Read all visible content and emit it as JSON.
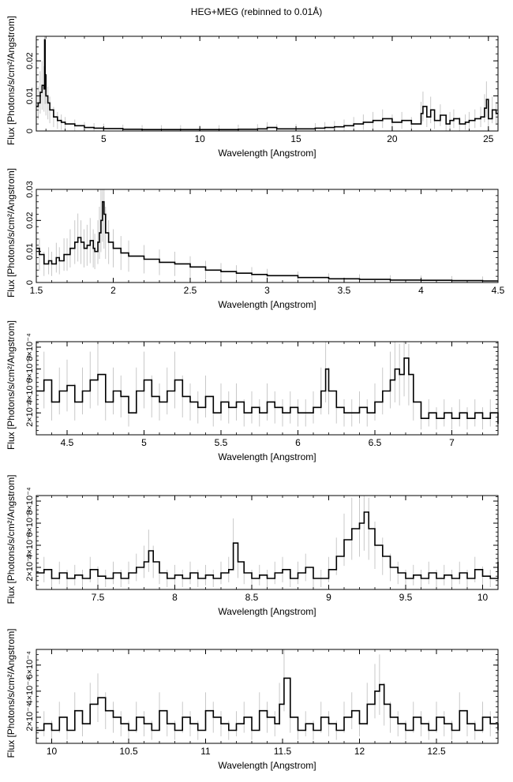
{
  "title": "HEG+MEG (rebinned to 0.01Å)",
  "chart_data": [
    {
      "type": "line",
      "subtype": "step-with-errorbars",
      "xlabel": "Wavelength [Angstrom]",
      "ylabel": "Flux [Photons/s/cm²/Angstrom]",
      "xlim": [
        1.5,
        25.5
      ],
      "ylim": [
        0,
        0.027
      ],
      "xticks": [
        5,
        10,
        15,
        20,
        25
      ],
      "yticks": [
        0,
        0.01,
        0.02
      ],
      "xticklabels": [
        "5",
        "10",
        "15",
        "20",
        "25"
      ],
      "yticklabels": [
        "0",
        "0.01",
        "0.02"
      ],
      "series": [
        {
          "x": [
            1.5,
            1.6,
            1.7,
            1.8,
            1.9,
            1.93,
            1.96,
            2.0,
            2.1,
            2.2,
            2.4,
            2.6,
            2.8,
            3.0,
            3.5,
            4.0,
            4.5,
            5.0,
            6.0,
            7.0,
            8.0,
            9.0,
            10.0,
            11.0,
            12.0,
            13.0,
            13.5,
            14.0,
            15.0,
            16.0,
            16.5,
            17.0,
            17.5,
            18.0,
            18.5,
            19.0,
            19.5,
            20.0,
            20.5,
            21.0,
            21.5,
            21.6,
            21.8,
            22.0,
            22.2,
            22.5,
            22.8,
            23.0,
            23.2,
            23.5,
            23.8,
            24.0,
            24.3,
            24.6,
            24.8,
            24.9,
            25.0,
            25.2,
            25.4
          ],
          "y": [
            0.007,
            0.008,
            0.011,
            0.013,
            0.012,
            0.026,
            0.016,
            0.01,
            0.008,
            0.006,
            0.004,
            0.003,
            0.0025,
            0.002,
            0.0015,
            0.001,
            0.0008,
            0.0007,
            0.0005,
            0.0004,
            0.0004,
            0.0004,
            0.0004,
            0.0004,
            0.0005,
            0.0006,
            0.001,
            0.0006,
            0.0006,
            0.0008,
            0.001,
            0.0012,
            0.0015,
            0.002,
            0.0025,
            0.003,
            0.0035,
            0.0025,
            0.003,
            0.002,
            0.005,
            0.007,
            0.004,
            0.006,
            0.003,
            0.0045,
            0.002,
            0.003,
            0.0035,
            0.002,
            0.0025,
            0.003,
            0.0035,
            0.004,
            0.0065,
            0.009,
            0.0035,
            0.006,
            0.005
          ]
        }
      ]
    },
    {
      "type": "line",
      "subtype": "step-with-errorbars",
      "xlabel": "Wavelength [Angstrom]",
      "ylabel": "Flux [Photons/s/cm²/Angstrom]",
      "xlim": [
        1.5,
        4.5
      ],
      "ylim": [
        0,
        0.03
      ],
      "xticks": [
        1.5,
        2,
        2.5,
        3,
        3.5,
        4,
        4.5
      ],
      "yticks": [
        0,
        0.01,
        0.02,
        0.03
      ],
      "xticklabels": [
        "1.5",
        "2",
        "2.5",
        "3",
        "3.5",
        "4",
        "4.5"
      ],
      "yticklabels": [
        "0",
        "0.01",
        "0.02",
        "0.03"
      ],
      "series": [
        {
          "x": [
            1.5,
            1.52,
            1.55,
            1.58,
            1.6,
            1.63,
            1.65,
            1.68,
            1.7,
            1.72,
            1.75,
            1.77,
            1.79,
            1.81,
            1.83,
            1.85,
            1.87,
            1.88,
            1.9,
            1.91,
            1.92,
            1.93,
            1.94,
            1.95,
            1.97,
            2.0,
            2.05,
            2.1,
            2.2,
            2.3,
            2.4,
            2.5,
            2.6,
            2.7,
            2.8,
            2.9,
            3.0,
            3.2,
            3.4,
            3.6,
            3.8,
            4.0,
            4.2,
            4.4,
            4.5
          ],
          "y": [
            0.011,
            0.009,
            0.006,
            0.007,
            0.006,
            0.008,
            0.007,
            0.009,
            0.009,
            0.011,
            0.013,
            0.0145,
            0.013,
            0.011,
            0.012,
            0.0135,
            0.011,
            0.01,
            0.013,
            0.016,
            0.02,
            0.026,
            0.022,
            0.016,
            0.013,
            0.011,
            0.0095,
            0.0085,
            0.0075,
            0.0065,
            0.006,
            0.005,
            0.004,
            0.0035,
            0.003,
            0.0026,
            0.0022,
            0.0016,
            0.0012,
            0.001,
            0.0008,
            0.0007,
            0.0006,
            0.0005,
            0.0005
          ]
        }
      ]
    },
    {
      "type": "line",
      "subtype": "step-with-errorbars",
      "xlabel": "Wavelength [Angstrom]",
      "ylabel": "Flux [Photons/s/cm²/Angstrom]",
      "xlim": [
        4.3,
        7.3
      ],
      "ylim": [
        0,
        0.00085
      ],
      "xticks": [
        4.5,
        5,
        5.5,
        6,
        6.5,
        7
      ],
      "yticks": [
        0.0002,
        0.0004,
        0.0006,
        0.0008
      ],
      "xticklabels": [
        "4.5",
        "5",
        "5.5",
        "6",
        "6.5",
        "7"
      ],
      "yticklabels": [
        "2×10⁻⁴",
        "4×10⁻⁴",
        "6×10⁻⁴",
        "8×10⁻⁴"
      ],
      "series": [
        {
          "x": [
            4.3,
            4.35,
            4.4,
            4.45,
            4.5,
            4.55,
            4.6,
            4.65,
            4.7,
            4.75,
            4.8,
            4.85,
            4.9,
            4.95,
            5.0,
            5.05,
            5.1,
            5.15,
            5.2,
            5.25,
            5.3,
            5.35,
            5.4,
            5.45,
            5.5,
            5.55,
            5.6,
            5.65,
            5.7,
            5.75,
            5.8,
            5.85,
            5.9,
            5.95,
            6.0,
            6.05,
            6.1,
            6.15,
            6.18,
            6.2,
            6.25,
            6.3,
            6.35,
            6.4,
            6.45,
            6.5,
            6.55,
            6.6,
            6.63,
            6.66,
            6.69,
            6.72,
            6.75,
            6.8,
            6.85,
            6.9,
            6.95,
            7.0,
            7.05,
            7.1,
            7.15,
            7.2,
            7.25,
            7.3
          ],
          "y": [
            0.0004,
            0.0005,
            0.0003,
            0.0004,
            0.00045,
            0.0003,
            0.0004,
            0.0005,
            0.00055,
            0.0003,
            0.0004,
            0.00035,
            0.0002,
            0.0004,
            0.0005,
            0.00035,
            0.0003,
            0.0004,
            0.0005,
            0.00035,
            0.0003,
            0.00025,
            0.00035,
            0.0002,
            0.0003,
            0.00025,
            0.0003,
            0.0002,
            0.00025,
            0.0002,
            0.0003,
            0.00025,
            0.0002,
            0.00025,
            0.0002,
            0.0002,
            0.00025,
            0.0004,
            0.0006,
            0.0004,
            0.00025,
            0.0002,
            0.0002,
            0.00025,
            0.0002,
            0.0003,
            0.0004,
            0.0005,
            0.0006,
            0.00055,
            0.0007,
            0.00055,
            0.0003,
            0.00015,
            0.0002,
            0.00015,
            0.0002,
            0.00015,
            0.0002,
            0.00015,
            0.0002,
            0.00015,
            0.0002,
            0.0001
          ]
        }
      ]
    },
    {
      "type": "line",
      "subtype": "step-with-errorbars",
      "xlabel": "Wavelength [Angstrom]",
      "ylabel": "Flux [Photons/s/cm²/Angstrom]",
      "xlim": [
        7.1,
        10.1
      ],
      "ylim": [
        0,
        0.00085
      ],
      "xticks": [
        7.5,
        8,
        8.5,
        9,
        9.5,
        10
      ],
      "yticks": [
        0.0002,
        0.0004,
        0.0006,
        0.0008
      ],
      "xticklabels": [
        "7.5",
        "8",
        "8.5",
        "9",
        "9.5",
        "10"
      ],
      "yticklabels": [
        "2×10⁻⁴",
        "4×10⁻⁴",
        "6×10⁻⁴",
        "8×10⁻⁴"
      ],
      "series": [
        {
          "x": [
            7.1,
            7.15,
            7.2,
            7.25,
            7.3,
            7.35,
            7.4,
            7.45,
            7.5,
            7.55,
            7.6,
            7.65,
            7.7,
            7.75,
            7.8,
            7.83,
            7.86,
            7.9,
            7.95,
            8.0,
            8.05,
            8.1,
            8.15,
            8.2,
            8.25,
            8.3,
            8.35,
            8.38,
            8.41,
            8.45,
            8.5,
            8.55,
            8.6,
            8.65,
            8.7,
            8.75,
            8.8,
            8.85,
            8.9,
            8.95,
            9.0,
            9.05,
            9.1,
            9.15,
            9.2,
            9.23,
            9.26,
            9.3,
            9.35,
            9.4,
            9.45,
            9.5,
            9.55,
            9.6,
            9.65,
            9.7,
            9.75,
            9.8,
            9.85,
            9.9,
            9.95,
            10.0,
            10.05,
            10.1
          ],
          "y": [
            0.00015,
            0.00018,
            0.0001,
            0.00015,
            0.0001,
            0.00013,
            0.0001,
            0.00018,
            0.00012,
            0.0001,
            0.00015,
            0.0001,
            0.00015,
            0.0002,
            0.00025,
            0.00035,
            0.00025,
            0.00015,
            0.0001,
            0.00013,
            0.0001,
            0.00015,
            0.0001,
            0.00013,
            0.0001,
            0.00015,
            0.00018,
            0.00042,
            0.00025,
            0.00015,
            0.0001,
            0.00013,
            0.0001,
            0.00015,
            0.00018,
            0.0001,
            0.00015,
            0.0002,
            0.0001,
            0.0001,
            0.00018,
            0.0003,
            0.00045,
            0.00055,
            0.0006,
            0.0007,
            0.00055,
            0.0004,
            0.0003,
            0.0002,
            0.00015,
            0.0001,
            0.00013,
            0.0001,
            0.00015,
            0.0001,
            0.00013,
            0.0001,
            0.00015,
            0.0001,
            0.00018,
            0.00012,
            0.0001,
            0.00025
          ]
        }
      ]
    },
    {
      "type": "line",
      "subtype": "step-with-errorbars",
      "xlabel": "Wavelength [Angstrom]",
      "ylabel": "Flux [Photons/s/cm²/Angstrom]",
      "xlim": [
        9.9,
        12.9
      ],
      "ylim": [
        0,
        0.00072
      ],
      "xticks": [
        10,
        10.5,
        11,
        11.5,
        12,
        12.5
      ],
      "yticks": [
        0.0002,
        0.0004,
        0.0006
      ],
      "xticklabels": [
        "10",
        "10.5",
        "11",
        "11.5",
        "12",
        "12.5"
      ],
      "yticklabels": [
        "2×10⁻⁴",
        "4×10⁻⁴",
        "6×10⁻⁴"
      ],
      "series": [
        {
          "x": [
            9.9,
            9.95,
            10.0,
            10.05,
            10.1,
            10.15,
            10.2,
            10.25,
            10.3,
            10.35,
            10.4,
            10.45,
            10.5,
            10.55,
            10.6,
            10.65,
            10.7,
            10.75,
            10.8,
            10.85,
            10.9,
            10.95,
            11.0,
            11.05,
            11.1,
            11.15,
            11.2,
            11.25,
            11.3,
            11.35,
            11.4,
            11.45,
            11.48,
            11.51,
            11.55,
            11.6,
            11.65,
            11.7,
            11.75,
            11.8,
            11.85,
            11.9,
            11.95,
            12.0,
            12.05,
            12.1,
            12.13,
            12.16,
            12.2,
            12.25,
            12.3,
            12.35,
            12.4,
            12.45,
            12.5,
            12.55,
            12.6,
            12.65,
            12.7,
            12.75,
            12.8,
            12.85,
            12.9
          ],
          "y": [
            0.0001,
            0.00015,
            0.0001,
            0.0002,
            0.0001,
            0.00025,
            0.00015,
            0.0003,
            0.00035,
            0.00025,
            0.0002,
            0.00015,
            0.0001,
            0.0002,
            0.00015,
            0.0001,
            0.00025,
            0.00015,
            0.0001,
            0.0002,
            0.00015,
            0.0001,
            0.00025,
            0.0002,
            0.00015,
            0.0001,
            0.00015,
            0.0002,
            0.0001,
            0.00025,
            0.0002,
            0.00015,
            0.0003,
            0.0005,
            0.0002,
            0.0001,
            0.00015,
            0.0001,
            0.0002,
            0.00015,
            0.0001,
            0.0002,
            0.00025,
            0.00015,
            0.0003,
            0.0004,
            0.00045,
            0.0003,
            0.0002,
            0.00015,
            0.0001,
            0.0002,
            0.00015,
            0.0001,
            0.0002,
            0.00015,
            0.0001,
            0.00025,
            0.00015,
            0.0001,
            0.0002,
            0.00015,
            0.0001
          ]
        }
      ]
    }
  ]
}
